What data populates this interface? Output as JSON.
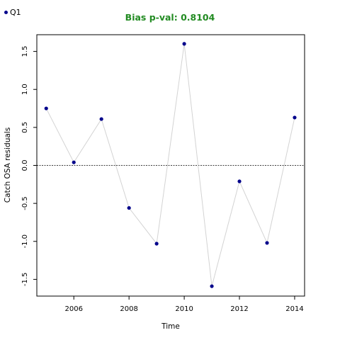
{
  "legend": {
    "label": "Q1"
  },
  "colors": {
    "point": "#00008b",
    "line": "#d3d3d3",
    "title": "#228b22"
  },
  "chart_data": {
    "type": "scatter",
    "title": "Bias p-val: 0.8104",
    "xlabel": "Time",
    "ylabel": "Catch OSA residuals",
    "xlim": [
      2004.66,
      2014.36
    ],
    "ylim": [
      -1.72,
      1.72
    ],
    "xticks": [
      2006,
      2008,
      2010,
      2012,
      2014
    ],
    "yticks": [
      -1.5,
      -1.0,
      -0.5,
      0.0,
      0.5,
      1.0,
      1.5
    ],
    "ytick_labels": [
      "-1.5",
      "-1.0",
      "-0.5",
      "0.0",
      "0.5",
      "1.0",
      "1.5"
    ],
    "reference_line": 0,
    "series": [
      {
        "name": "Q1",
        "x": [
          2005,
          2006,
          2007,
          2008,
          2009,
          2010,
          2011,
          2012,
          2013,
          2014
        ],
        "y": [
          0.75,
          0.04,
          0.61,
          -0.56,
          -1.03,
          1.6,
          -1.59,
          -0.21,
          -1.02,
          0.63
        ]
      }
    ],
    "grid": false,
    "legend_position": "top-left"
  }
}
